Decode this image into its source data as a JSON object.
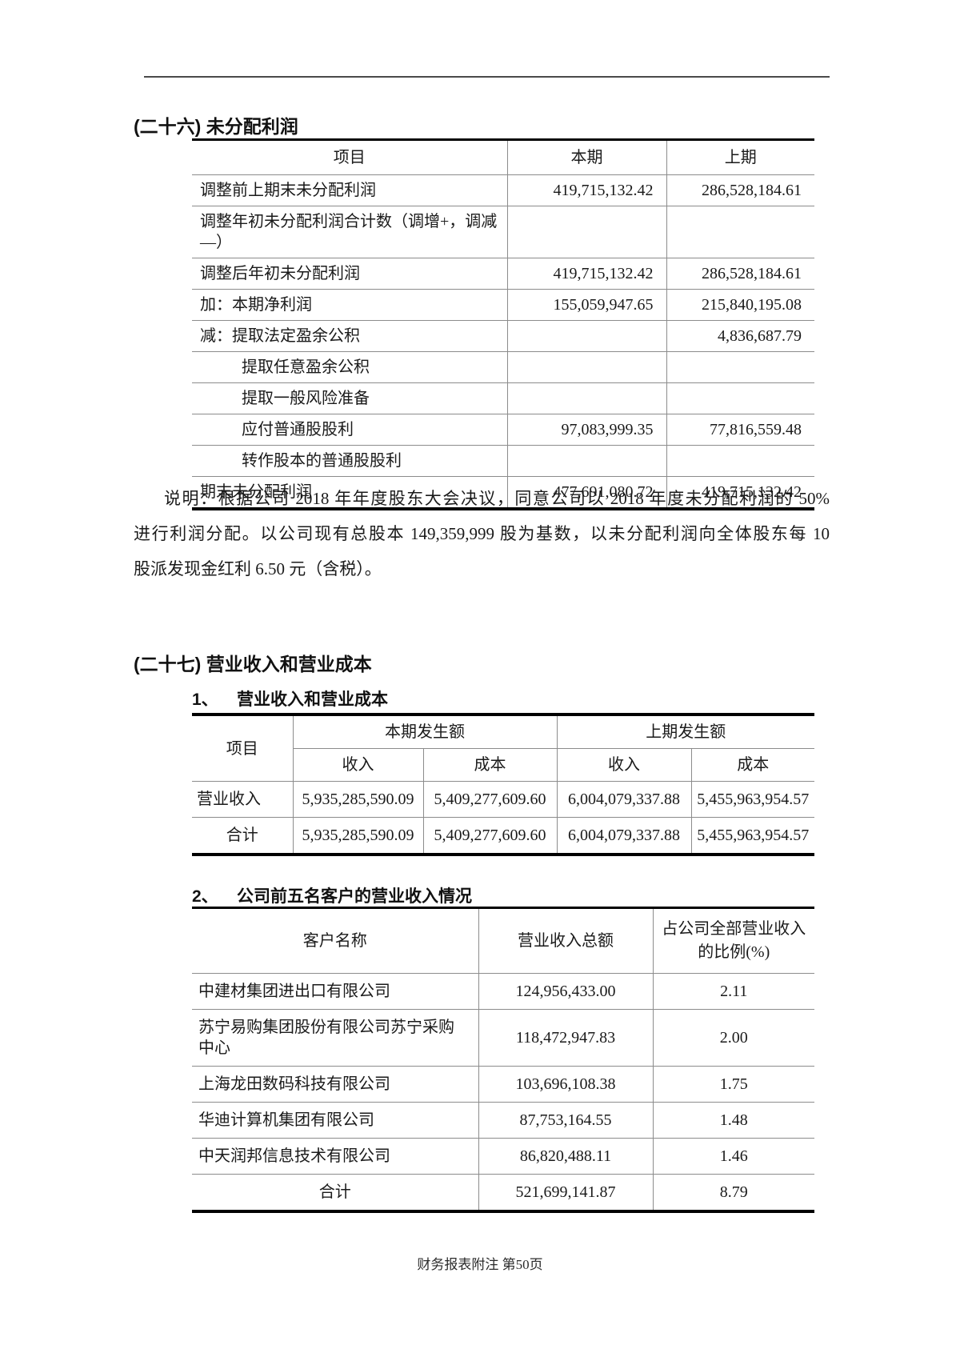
{
  "footer": "财务报表附注 第50页",
  "s26": {
    "title": "(二十六) 未分配利润",
    "table": {
      "headers": {
        "item": "项目",
        "current": "本期",
        "prior": "上期"
      },
      "rows": [
        {
          "label": "调整前上期末未分配利润",
          "current": "419,715,132.42",
          "prior": "286,528,184.61"
        },
        {
          "label": "调整年初未分配利润合计数（调增+，调减—）",
          "current": "",
          "prior": ""
        },
        {
          "label": "调整后年初未分配利润",
          "current": "419,715,132.42",
          "prior": "286,528,184.61"
        },
        {
          "label": "加：本期净利润",
          "current": "155,059,947.65",
          "prior": "215,840,195.08"
        },
        {
          "label": "减：提取法定盈余公积",
          "current": "",
          "prior": "4,836,687.79"
        },
        {
          "label": "提取任意盈余公积",
          "current": "",
          "prior": ""
        },
        {
          "label": "提取一般风险准备",
          "current": "",
          "prior": ""
        },
        {
          "label": "应付普通股股利",
          "current": "97,083,999.35",
          "prior": "77,816,559.48"
        },
        {
          "label": "转作股本的普通股股利",
          "current": "",
          "prior": ""
        },
        {
          "label": "期末未分配利润",
          "current": "477,691,080.72",
          "prior": "419,715,132.42"
        }
      ]
    },
    "note_lines": [
      "说明：根据公司 2018 年年度股东大会决议，同意公司以 2018 年度未分配利润的 50%",
      "进行利润分配。以公司现有总股本 149,359,999 股为基数，以未分配利润向全体股东每 10",
      "股派发现金红利 6.50 元（含税）。"
    ]
  },
  "s27": {
    "title": "(二十七) 营业收入和营业成本",
    "sub1": {
      "num": "1、",
      "title": "营业收入和营业成本",
      "table": {
        "col_item": "项目",
        "group_current": "本期发生额",
        "group_prior": "上期发生额",
        "col_income": "收入",
        "col_cost": "成本",
        "rows": [
          {
            "item": "营业收入",
            "cur_income": "5,935,285,590.09",
            "cur_cost": "5,409,277,609.60",
            "pri_income": "6,004,079,337.88",
            "pri_cost": "5,455,963,954.57"
          },
          {
            "item": "合计",
            "cur_income": "5,935,285,590.09",
            "cur_cost": "5,409,277,609.60",
            "pri_income": "6,004,079,337.88",
            "pri_cost": "5,455,963,954.57"
          }
        ]
      }
    },
    "sub2": {
      "num": "2、",
      "title": "公司前五名客户的营业收入情况",
      "table": {
        "col_client": "客户名称",
        "col_revenue": "营业收入总额",
        "col_ratio_line1": "占公司全部营业收入",
        "col_ratio_line2": "的比例(%)",
        "rows": [
          {
            "client": "中建材集团进出口有限公司",
            "revenue": "124,956,433.00",
            "ratio": "2.11"
          },
          {
            "client": "苏宁易购集团股份有限公司苏宁采购中心",
            "revenue": "118,472,947.83",
            "ratio": "2.00"
          },
          {
            "client": "上海龙田数码科技有限公司",
            "revenue": "103,696,108.38",
            "ratio": "1.75"
          },
          {
            "client": "华迪计算机集团有限公司",
            "revenue": "87,753,164.55",
            "ratio": "1.48"
          },
          {
            "client": "中天润邦信息技术有限公司",
            "revenue": "86,820,488.11",
            "ratio": "1.46"
          },
          {
            "client": "合计",
            "revenue": "521,699,141.87",
            "ratio": "8.79"
          }
        ]
      }
    }
  }
}
